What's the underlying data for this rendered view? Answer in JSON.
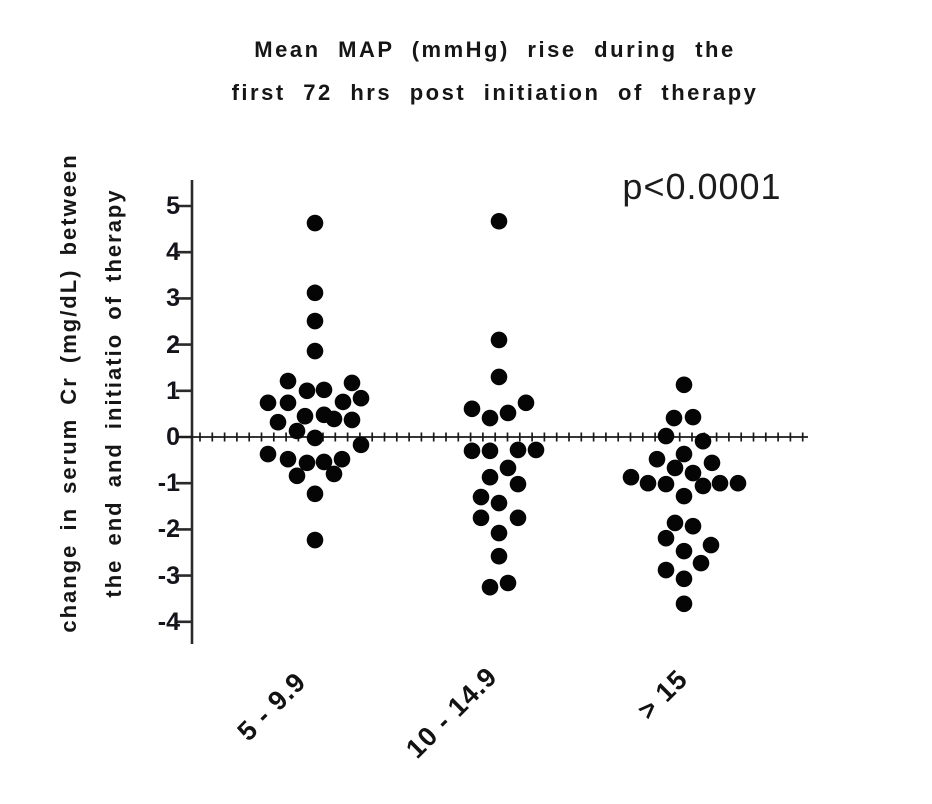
{
  "title": {
    "line1": "Mean MAP (mmHg) rise during the",
    "line2": "first 72 hrs post initiation of therapy"
  },
  "annotation": {
    "p_value": "p<0.0001"
  },
  "y_axis": {
    "label_line1": "change in serum Cr (mg/dL) between",
    "label_line2": "the end and initiatio of therapy",
    "ticks": [
      5,
      4,
      3,
      2,
      1,
      0,
      -1,
      -2,
      -3,
      -4
    ]
  },
  "x_axis": {
    "categories": [
      "5 - 9.9",
      "10 - 14.9",
      "> 15"
    ]
  },
  "colors": {
    "dot": "#050505",
    "axis": "#2a2a2a",
    "zero_line": "#1a1a1a"
  },
  "chart_data": {
    "type": "scatter",
    "title": "Mean MAP (mmHg) rise during the first 72 hrs post initiation of therapy",
    "xlabel": "Mean MAP (mmHg) rise during the first 72 hrs post initiation of therapy",
    "ylabel": "change in serum Cr (mg/dL) between the end and initiatio of therapy",
    "ylim": [
      -4.6,
      5.6
    ],
    "grid": false,
    "legend": false,
    "p_value": "p<0.0001",
    "point_format": "[x_offset_px_from_group_center, y_value_mg_dL]",
    "groups": [
      {
        "label": "5 - 9.9",
        "n": 29,
        "points": [
          [
            0,
            4.63
          ],
          [
            0,
            3.12
          ],
          [
            0,
            2.51
          ],
          [
            0,
            1.86
          ],
          [
            -27,
            1.21
          ],
          [
            37,
            1.17
          ],
          [
            -8,
            1.0
          ],
          [
            9,
            1.02
          ],
          [
            -47,
            0.74
          ],
          [
            -27,
            0.74
          ],
          [
            28,
            0.76
          ],
          [
            46,
            0.84
          ],
          [
            -37,
            0.32
          ],
          [
            -10,
            0.45
          ],
          [
            9,
            0.48
          ],
          [
            19,
            0.39
          ],
          [
            37,
            0.37
          ],
          [
            -18,
            0.13
          ],
          [
            0,
            -0.02
          ],
          [
            46,
            -0.17
          ],
          [
            -47,
            -0.37
          ],
          [
            -27,
            -0.48
          ],
          [
            -8,
            -0.56
          ],
          [
            9,
            -0.54
          ],
          [
            27,
            -0.48
          ],
          [
            -18,
            -0.84
          ],
          [
            19,
            -0.8
          ],
          [
            0,
            -1.23
          ],
          [
            0,
            -2.23
          ]
        ]
      },
      {
        "label": "10 - 14.9",
        "n": 22,
        "points": [
          [
            0,
            4.67
          ],
          [
            0,
            2.1
          ],
          [
            0,
            1.3
          ],
          [
            -27,
            0.61
          ],
          [
            27,
            0.74
          ],
          [
            -9,
            0.41
          ],
          [
            9,
            0.52
          ],
          [
            -27,
            -0.3
          ],
          [
            -9,
            -0.3
          ],
          [
            19,
            -0.28
          ],
          [
            37,
            -0.28
          ],
          [
            9,
            -0.67
          ],
          [
            -9,
            -0.87
          ],
          [
            19,
            -1.02
          ],
          [
            -18,
            -1.3
          ],
          [
            0,
            -1.43
          ],
          [
            -18,
            -1.75
          ],
          [
            19,
            -1.75
          ],
          [
            0,
            -2.08
          ],
          [
            0,
            -2.58
          ],
          [
            -9,
            -3.25
          ],
          [
            9,
            -3.16
          ]
        ]
      },
      {
        "label": "> 15",
        "n": 26,
        "points": [
          [
            0,
            1.13
          ],
          [
            -10,
            0.41
          ],
          [
            9,
            0.43
          ],
          [
            -18,
            0.02
          ],
          [
            19,
            -0.09
          ],
          [
            0,
            -0.37
          ],
          [
            -27,
            -0.48
          ],
          [
            28,
            -0.56
          ],
          [
            -9,
            -0.67
          ],
          [
            9,
            -0.78
          ],
          [
            -53,
            -0.87
          ],
          [
            -36,
            -1.0
          ],
          [
            -18,
            -1.02
          ],
          [
            19,
            -1.06
          ],
          [
            36,
            -1.0
          ],
          [
            54,
            -1.0
          ],
          [
            0,
            -1.28
          ],
          [
            -9,
            -1.86
          ],
          [
            9,
            -1.93
          ],
          [
            -18,
            -2.19
          ],
          [
            27,
            -2.34
          ],
          [
            0,
            -2.47
          ],
          [
            17,
            -2.73
          ],
          [
            -18,
            -2.88
          ],
          [
            0,
            -3.07
          ],
          [
            0,
            -3.61
          ]
        ]
      }
    ]
  }
}
